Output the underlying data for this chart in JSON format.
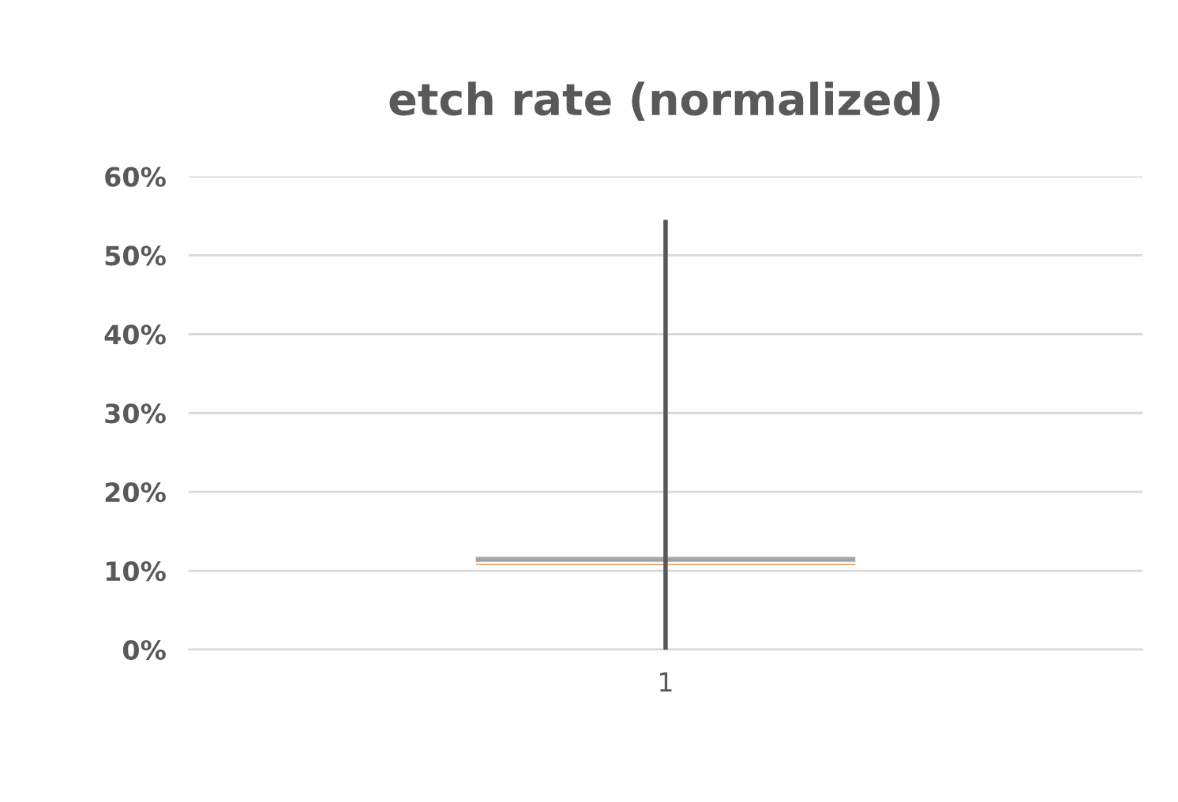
{
  "chart_data": {
    "type": "bar",
    "title": "etch rate (normalized)",
    "categories": [
      "1"
    ],
    "series": [
      {
        "color": "#a5a5a5",
        "base": [
          10.6
        ],
        "values": [
          1.3
        ],
        "errors": [
          [
            0,
            54.5
          ]
        ]
      },
      {
        "color": "#ed7d31",
        "base": [
          10.6
        ],
        "values": [
          0.4
        ]
      }
    ],
    "ylim": [
      0,
      60
    ],
    "yticks": [
      {
        "value": 0,
        "label": "0%"
      },
      {
        "value": 10,
        "label": "10%"
      },
      {
        "value": 20,
        "label": "20%"
      },
      {
        "value": 30,
        "label": "30%"
      },
      {
        "value": 40,
        "label": "40%"
      },
      {
        "value": 50,
        "label": "50%"
      },
      {
        "value": 60,
        "label": "60%"
      }
    ],
    "grid": "y"
  }
}
